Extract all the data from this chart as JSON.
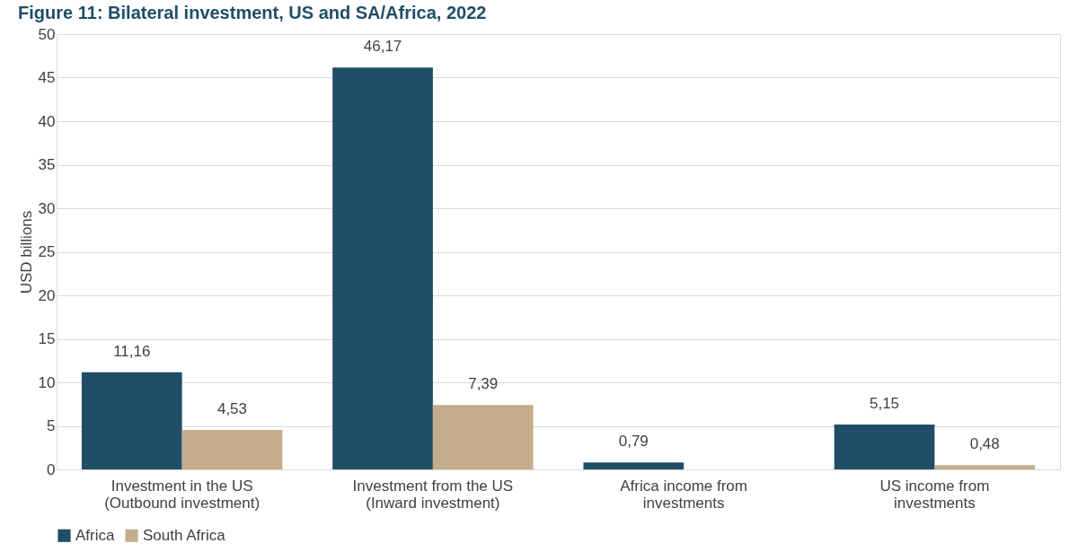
{
  "chart_data": {
    "type": "bar",
    "title": "Figure 11: Bilateral investment, US and SA/Africa, 2022",
    "ylabel": "USD billions",
    "categories": [
      "Investment in the US\n(Outbound investment)",
      "Investment from the US\n(Inward investment)",
      "Africa income from\ninvestments",
      "US income from\ninvestments"
    ],
    "series": [
      {
        "name": "Africa",
        "color": "#1f4e66",
        "values": [
          11.16,
          46.17,
          0.79,
          5.15
        ],
        "value_labels": [
          "11,16",
          "46,17",
          "0,79",
          "5,15"
        ]
      },
      {
        "name": "South Africa",
        "color": "#c4ad8a",
        "values": [
          4.53,
          7.39,
          null,
          0.48
        ],
        "value_labels": [
          "4,53",
          "7,39",
          null,
          "0,48"
        ]
      }
    ],
    "ylim": [
      0,
      50
    ],
    "yticks": [
      0,
      5,
      10,
      15,
      20,
      25,
      30,
      35,
      40,
      45,
      50
    ],
    "grid": "y",
    "legend": "bottom"
  }
}
